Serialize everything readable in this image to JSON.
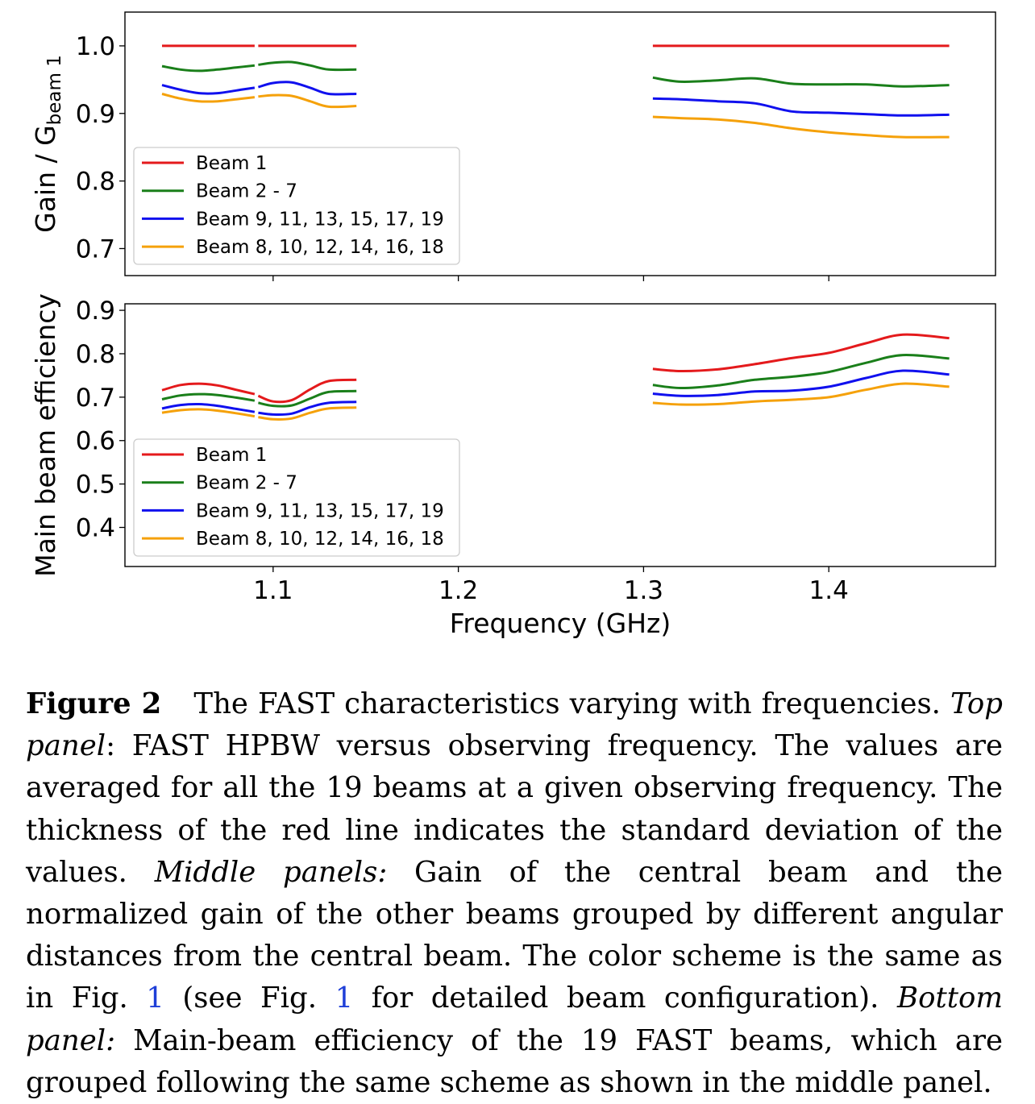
{
  "figure": {
    "x_axis": {
      "label": "Frequency (GHz)",
      "ticks": [
        1.1,
        1.2,
        1.3,
        1.4
      ],
      "tick_labels": [
        "1.1",
        "1.2",
        "1.3",
        "1.4"
      ],
      "xlim": [
        1.02,
        1.49
      ]
    }
  },
  "chart_data": [
    {
      "type": "line",
      "panel": "top",
      "ylabel_main": "Gain / G",
      "ylabel_sub": "beam 1",
      "ylim": [
        0.66,
        1.05
      ],
      "yticks": [
        0.7,
        0.8,
        0.9,
        1.0
      ],
      "ytick_labels": [
        "0.7",
        "0.8",
        "0.9",
        "1.0"
      ],
      "legend_position": "center-left",
      "series": [
        {
          "name": "Beam 1",
          "color": "#e41a1c",
          "segments": [
            {
              "x": [
                1.04,
                1.09
              ],
              "y": [
                1.0,
                1.0
              ]
            },
            {
              "x": [
                1.092,
                1.145
              ],
              "y": [
                1.0,
                1.0
              ]
            },
            {
              "x": [
                1.305,
                1.465
              ],
              "y": [
                1.0,
                1.0
              ]
            }
          ]
        },
        {
          "name": "Beam 2 - 7",
          "color": "#1a7f1a",
          "segments": [
            {
              "x": [
                1.04,
                1.05,
                1.06,
                1.07,
                1.08,
                1.09
              ],
              "y": [
                0.97,
                0.965,
                0.963,
                0.965,
                0.968,
                0.971
              ]
            },
            {
              "x": [
                1.092,
                1.1,
                1.11,
                1.12,
                1.13,
                1.145
              ],
              "y": [
                0.972,
                0.975,
                0.976,
                0.971,
                0.965,
                0.965
              ]
            },
            {
              "x": [
                1.305,
                1.32,
                1.34,
                1.36,
                1.38,
                1.4,
                1.42,
                1.44,
                1.465
              ],
              "y": [
                0.953,
                0.947,
                0.949,
                0.952,
                0.944,
                0.943,
                0.943,
                0.94,
                0.942
              ]
            }
          ]
        },
        {
          "name": "Beam 9, 11, 13, 15, 17, 19",
          "color": "#1010ee",
          "segments": [
            {
              "x": [
                1.04,
                1.05,
                1.06,
                1.07,
                1.08,
                1.09
              ],
              "y": [
                0.942,
                0.935,
                0.93,
                0.93,
                0.934,
                0.938
              ]
            },
            {
              "x": [
                1.092,
                1.1,
                1.11,
                1.12,
                1.13,
                1.145
              ],
              "y": [
                0.939,
                0.945,
                0.946,
                0.938,
                0.929,
                0.929
              ]
            },
            {
              "x": [
                1.305,
                1.32,
                1.34,
                1.36,
                1.38,
                1.4,
                1.42,
                1.44,
                1.465
              ],
              "y": [
                0.922,
                0.921,
                0.918,
                0.915,
                0.903,
                0.901,
                0.899,
                0.897,
                0.898
              ]
            }
          ]
        },
        {
          "name": "Beam 8, 10, 12, 14, 16, 18",
          "color": "#f5a10a",
          "segments": [
            {
              "x": [
                1.04,
                1.05,
                1.06,
                1.07,
                1.08,
                1.09
              ],
              "y": [
                0.929,
                0.922,
                0.918,
                0.918,
                0.921,
                0.924
              ]
            },
            {
              "x": [
                1.092,
                1.1,
                1.11,
                1.12,
                1.13,
                1.145
              ],
              "y": [
                0.925,
                0.927,
                0.926,
                0.918,
                0.91,
                0.911
              ]
            },
            {
              "x": [
                1.305,
                1.32,
                1.34,
                1.36,
                1.38,
                1.4,
                1.42,
                1.44,
                1.465
              ],
              "y": [
                0.895,
                0.893,
                0.891,
                0.886,
                0.878,
                0.872,
                0.868,
                0.865,
                0.865
              ]
            }
          ]
        }
      ]
    },
    {
      "type": "line",
      "panel": "bottom",
      "ylabel_main": "Main beam efficiency",
      "ylabel_sub": "",
      "ylim": [
        0.31,
        0.915
      ],
      "yticks": [
        0.4,
        0.5,
        0.6,
        0.7,
        0.8,
        0.9
      ],
      "ytick_labels": [
        "0.4",
        "0.5",
        "0.6",
        "0.7",
        "0.8",
        "0.9"
      ],
      "legend_position": "lower-left",
      "series": [
        {
          "name": "Beam 1",
          "color": "#e41a1c",
          "segments": [
            {
              "x": [
                1.04,
                1.05,
                1.06,
                1.07,
                1.08,
                1.09
              ],
              "y": [
                0.716,
                0.728,
                0.731,
                0.727,
                0.717,
                0.707
              ]
            },
            {
              "x": [
                1.092,
                1.1,
                1.11,
                1.12,
                1.13,
                1.145
              ],
              "y": [
                0.703,
                0.69,
                0.693,
                0.718,
                0.737,
                0.74
              ]
            },
            {
              "x": [
                1.305,
                1.32,
                1.34,
                1.36,
                1.38,
                1.4,
                1.42,
                1.44,
                1.465
              ],
              "y": [
                0.765,
                0.76,
                0.764,
                0.776,
                0.79,
                0.802,
                0.824,
                0.844,
                0.836
              ]
            }
          ]
        },
        {
          "name": "Beam 2 - 7",
          "color": "#1a7f1a",
          "segments": [
            {
              "x": [
                1.04,
                1.05,
                1.06,
                1.07,
                1.08,
                1.09
              ],
              "y": [
                0.695,
                0.704,
                0.707,
                0.705,
                0.699,
                0.692
              ]
            },
            {
              "x": [
                1.092,
                1.1,
                1.11,
                1.12,
                1.13,
                1.145
              ],
              "y": [
                0.687,
                0.68,
                0.681,
                0.697,
                0.712,
                0.714
              ]
            },
            {
              "x": [
                1.305,
                1.32,
                1.34,
                1.36,
                1.38,
                1.4,
                1.42,
                1.44,
                1.465
              ],
              "y": [
                0.728,
                0.721,
                0.727,
                0.74,
                0.747,
                0.758,
                0.779,
                0.797,
                0.789
              ]
            }
          ]
        },
        {
          "name": "Beam 9, 11, 13, 15, 17, 19",
          "color": "#1010ee",
          "segments": [
            {
              "x": [
                1.04,
                1.05,
                1.06,
                1.07,
                1.08,
                1.09
              ],
              "y": [
                0.674,
                0.682,
                0.684,
                0.68,
                0.673,
                0.666
              ]
            },
            {
              "x": [
                1.092,
                1.1,
                1.11,
                1.12,
                1.13,
                1.145
              ],
              "y": [
                0.664,
                0.66,
                0.662,
                0.677,
                0.687,
                0.689
              ]
            },
            {
              "x": [
                1.305,
                1.32,
                1.34,
                1.36,
                1.38,
                1.4,
                1.42,
                1.44,
                1.465
              ],
              "y": [
                0.708,
                0.703,
                0.705,
                0.713,
                0.715,
                0.724,
                0.744,
                0.761,
                0.752
              ]
            }
          ]
        },
        {
          "name": "Beam 8, 10, 12, 14, 16, 18",
          "color": "#f5a10a",
          "segments": [
            {
              "x": [
                1.04,
                1.05,
                1.06,
                1.07,
                1.08,
                1.09
              ],
              "y": [
                0.664,
                0.67,
                0.672,
                0.669,
                0.663,
                0.656
              ]
            },
            {
              "x": [
                1.092,
                1.1,
                1.11,
                1.12,
                1.13,
                1.145
              ],
              "y": [
                0.654,
                0.649,
                0.651,
                0.664,
                0.674,
                0.676
              ]
            },
            {
              "x": [
                1.305,
                1.32,
                1.34,
                1.36,
                1.38,
                1.4,
                1.42,
                1.44,
                1.465
              ],
              "y": [
                0.687,
                0.683,
                0.684,
                0.69,
                0.694,
                0.7,
                0.717,
                0.731,
                0.724
              ]
            }
          ]
        }
      ]
    }
  ],
  "caption": {
    "label": "Figure 2",
    "s1": "The FAST characteristics varying with frequencies. ",
    "top_panel": "Top panel",
    "s2": ": FAST HPBW versus observing frequency. The values are averaged for all the 19 beams at a given observing frequency. The thickness of the red line indicates the standard deviation of the values. ",
    "middle_panels": "Middle panels:",
    "s3": " Gain of the central beam and the normalized gain of the other beams grouped by different angular distances from the central beam. The color scheme is the same as in Fig. ",
    "ref1": "1",
    "s4": " (see Fig. ",
    "ref2": "1",
    "s5": " for detailed beam configuration). ",
    "bottom_panel": "Bottom panel:",
    "s6": " Main-beam efficiency of the 19 FAST beams, which are grouped following the same scheme as shown in the middle panel."
  }
}
